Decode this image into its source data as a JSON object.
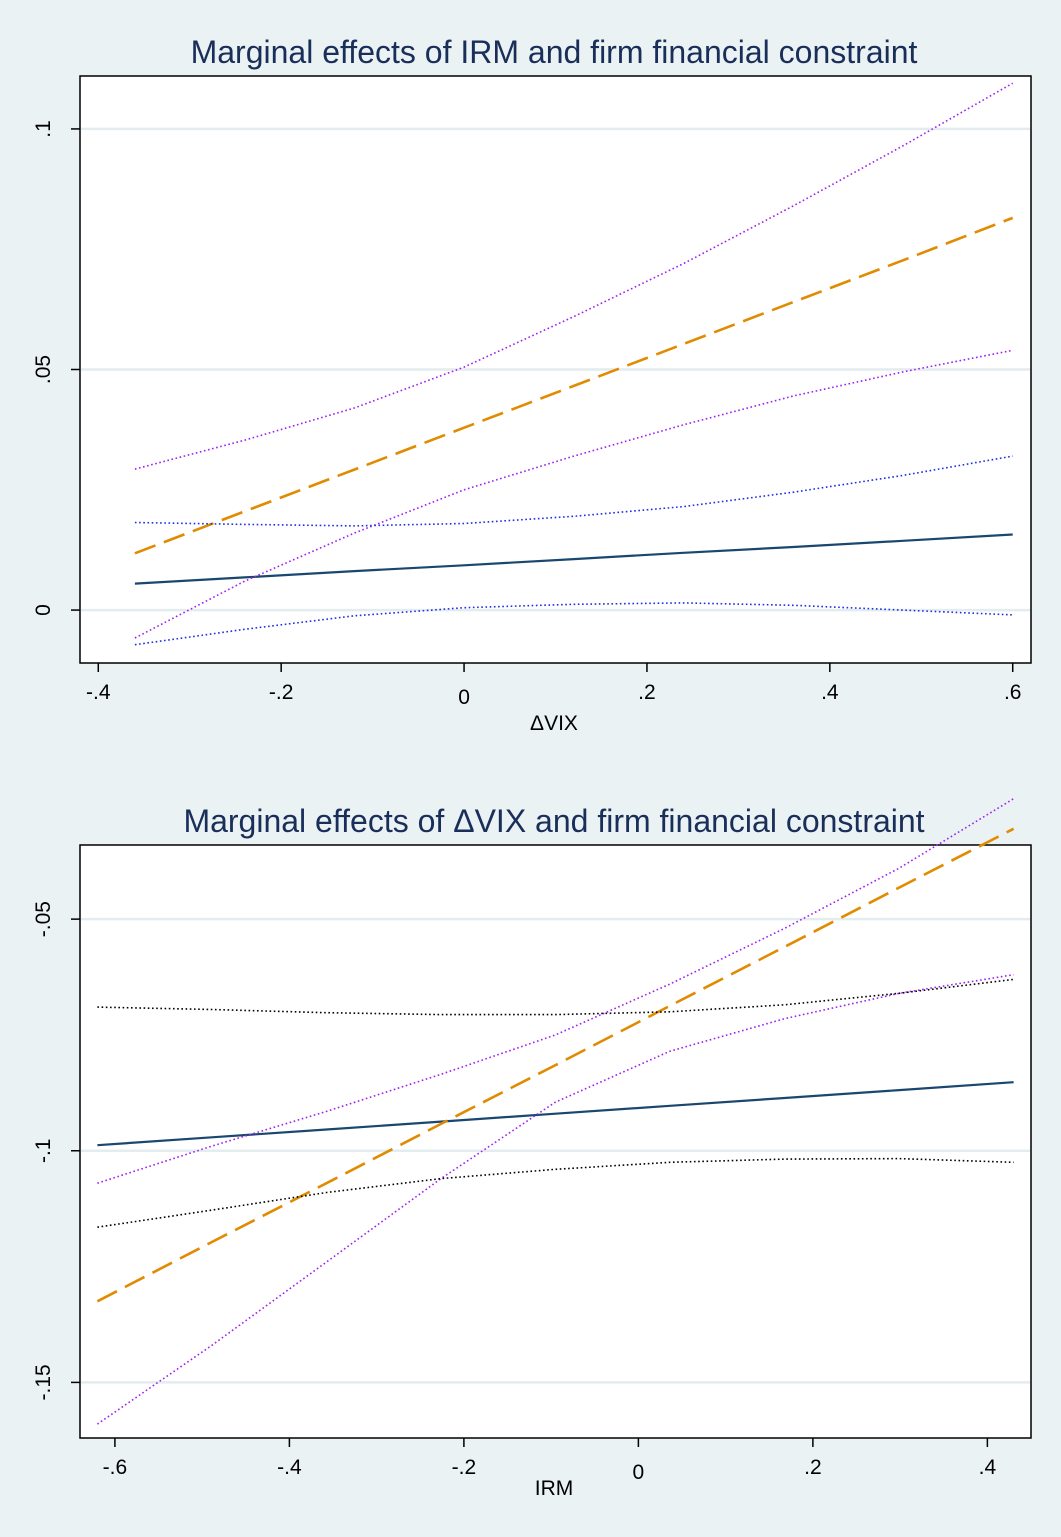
{
  "colors": {
    "background": "#eaf2f3",
    "plot_background": "#ffffff",
    "grid": "#e3ecee",
    "title": "#1a2e5a"
  },
  "chart_data": [
    {
      "type": "line",
      "title": "Marginal effects of IRM and firm financial constraint",
      "xlabel": "ΔVIX",
      "ylabel": "",
      "xlim": [
        -0.42,
        0.62
      ],
      "ylim": [
        -0.011,
        0.111
      ],
      "xticks": [
        -0.4,
        -0.2,
        0,
        0.2,
        0.4,
        0.6
      ],
      "xtick_labels": [
        "-.4",
        "-.2",
        "0",
        ".2",
        ".4",
        ".6"
      ],
      "yticks": [
        0,
        0.05,
        0.1
      ],
      "ytick_labels": [
        "0",
        ".05",
        ".1"
      ],
      "grid": true,
      "legend": "none",
      "x": [
        -0.36,
        -0.24,
        -0.12,
        0.0,
        0.12,
        0.24,
        0.36,
        0.48,
        0.6
      ],
      "series": [
        {
          "style": "solid",
          "color": "#1a476f",
          "values": [
            0.0055,
            0.0068,
            0.0081,
            0.0093,
            0.0106,
            0.0119,
            0.0131,
            0.0144,
            0.0157
          ]
        },
        {
          "style": "dashed",
          "color": "#e08b00",
          "values": [
            0.0118,
            0.0205,
            0.0292,
            0.0379,
            0.0466,
            0.0553,
            0.064,
            0.0727,
            0.0815
          ]
        },
        {
          "style": "dotted",
          "color": "#a020f0",
          "values": [
            0.0293,
            0.0353,
            0.042,
            0.0505,
            0.061,
            0.072,
            0.084,
            0.0965,
            0.1095
          ]
        },
        {
          "style": "dotted",
          "color": "#a020f0",
          "values": [
            -0.0058,
            0.006,
            0.016,
            0.025,
            0.032,
            0.0385,
            0.0445,
            0.0495,
            0.054
          ]
        },
        {
          "style": "dotted",
          "color": "#1d2fe0",
          "values": [
            0.0182,
            0.0178,
            0.0175,
            0.018,
            0.0195,
            0.0215,
            0.0245,
            0.028,
            0.032
          ]
        },
        {
          "style": "dotted",
          "color": "#1d2fe0",
          "values": [
            -0.0072,
            -0.004,
            -0.0012,
            0.0005,
            0.0012,
            0.0015,
            0.001,
            0.0,
            -0.001
          ]
        }
      ]
    },
    {
      "type": "line",
      "title": "Marginal effects of ΔVIX and firm financial constraint",
      "xlabel": "IRM",
      "ylabel": "",
      "xlim": [
        -0.64,
        0.45
      ],
      "ylim": [
        -0.162,
        -0.034
      ],
      "xticks": [
        -0.6,
        -0.4,
        -0.2,
        0,
        0.2,
        0.4
      ],
      "xtick_labels": [
        "-.6",
        "-.4",
        "-.2",
        "0",
        ".2",
        ".4"
      ],
      "yticks": [
        -0.15,
        -0.1,
        -0.05
      ],
      "ytick_labels": [
        "-.15",
        "-.1",
        "-.05"
      ],
      "grid": true,
      "legend": "none",
      "x": [
        -0.62,
        -0.4888,
        -0.3575,
        -0.2262,
        -0.095,
        0.0362,
        0.1675,
        0.2988,
        0.43
      ],
      "series": [
        {
          "style": "solid",
          "color": "#1a476f",
          "values": [
            -0.0988,
            -0.0971,
            -0.0954,
            -0.0937,
            -0.092,
            -0.0903,
            -0.0886,
            -0.0869,
            -0.0852
          ]
        },
        {
          "style": "dashed",
          "color": "#e08b00",
          "values": [
            -0.1325,
            -0.1197,
            -0.107,
            -0.0942,
            -0.0815,
            -0.0687,
            -0.056,
            -0.0432,
            -0.0305
          ]
        },
        {
          "style": "dotted",
          "color": "#a020f0",
          "values": [
            -0.107,
            -0.099,
            -0.0915,
            -0.0835,
            -0.075,
            -0.064,
            -0.052,
            -0.039,
            -0.024
          ]
        },
        {
          "style": "dotted",
          "color": "#a020f0",
          "values": [
            -0.159,
            -0.142,
            -0.124,
            -0.106,
            -0.0895,
            -0.0785,
            -0.0715,
            -0.066,
            -0.062
          ]
        },
        {
          "style": "dotted",
          "color": "#000000",
          "values": [
            -0.069,
            -0.0695,
            -0.0702,
            -0.0706,
            -0.0706,
            -0.07,
            -0.0685,
            -0.066,
            -0.063
          ]
        },
        {
          "style": "dotted",
          "color": "#000000",
          "values": [
            -0.1165,
            -0.1128,
            -0.109,
            -0.106,
            -0.104,
            -0.1025,
            -0.1018,
            -0.1017,
            -0.1025
          ]
        }
      ]
    }
  ]
}
